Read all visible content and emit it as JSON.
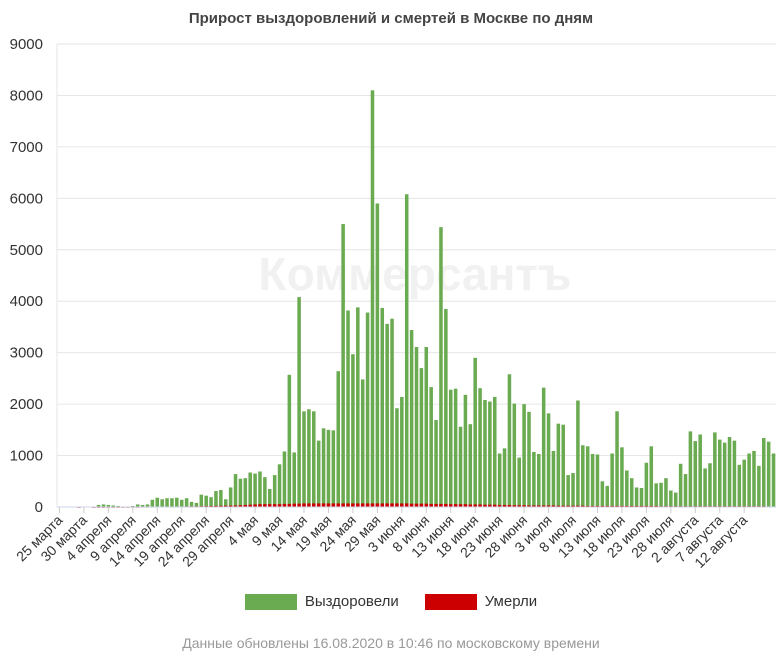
{
  "chart_data": {
    "type": "bar",
    "title": "Прирост выздоровлений и смертей в Москве по дням",
    "ylim": [
      0,
      9000
    ],
    "yticks": [
      0,
      1000,
      2000,
      3000,
      4000,
      5000,
      6000,
      7000,
      8000,
      9000
    ],
    "grid": true,
    "legend_position": "bottom",
    "watermark": "Коммерсантъ",
    "footer": "Данные обновлены 16.08.2020 в 10:46 по московскому времени",
    "x_tick_labels": [
      "25 марта",
      "30 марта",
      "4 апреля",
      "9 апреля",
      "14 апреля",
      "19 апреля",
      "24 апреля",
      "29 апреля",
      "4 мая",
      "9 мая",
      "14 мая",
      "19 мая",
      "24 мая",
      "29 мая",
      "3 июня",
      "8 июня",
      "13 июня",
      "18 июня",
      "23 июня",
      "28 июня",
      "3 июля",
      "8 июля",
      "13 июля",
      "18 июля",
      "23 июля",
      "28 июля",
      "2 августа",
      "7 августа",
      "12 августа"
    ],
    "x_tick_every": 5,
    "series": [
      {
        "name": "Выздоровели",
        "color": "#6aaa50",
        "values": [
          0,
          0,
          0,
          0,
          10,
          0,
          0,
          10,
          40,
          50,
          40,
          30,
          20,
          0,
          10,
          20,
          50,
          40,
          50,
          140,
          180,
          150,
          170,
          170,
          180,
          140,
          170,
          100,
          80,
          240,
          220,
          190,
          310,
          330,
          150,
          380,
          640,
          550,
          560,
          670,
          650,
          690,
          580,
          350,
          620,
          830,
          1080,
          2570,
          1060,
          4080,
          1860,
          1900,
          1860,
          1290,
          1530,
          1500,
          1490,
          2640,
          5500,
          3820,
          2970,
          3880,
          2480,
          3780,
          8100,
          5900,
          3870,
          3560,
          3660,
          1920,
          2140,
          6080,
          3440,
          3110,
          2700,
          3110,
          2330,
          1690,
          5440,
          3850,
          2280,
          2300,
          1560,
          2180,
          1610,
          2900,
          2310,
          2080,
          2050,
          2140,
          1040,
          1140,
          2580,
          2010,
          960,
          2000,
          1850,
          1070,
          1030,
          2320,
          1820,
          1090,
          1620,
          1600,
          620,
          660,
          2070,
          1200,
          1180,
          1030,
          1020,
          500,
          410,
          1040,
          1860,
          1160,
          710,
          560,
          380,
          370,
          860,
          1180,
          460,
          470,
          560,
          320,
          280,
          840,
          640,
          1470,
          1280,
          1410,
          750,
          850,
          1450,
          1310,
          1250,
          1360,
          1290,
          820,
          920,
          1040,
          1090,
          800,
          1340,
          1270,
          1040
        ]
      },
      {
        "name": "Умерли",
        "color": "#cc0000",
        "values": [
          0,
          0,
          0,
          0,
          1,
          0,
          0,
          1,
          1,
          1,
          1,
          2,
          2,
          2,
          2,
          3,
          3,
          4,
          4,
          5,
          6,
          7,
          8,
          9,
          10,
          10,
          12,
          13,
          14,
          16,
          18,
          20,
          22,
          24,
          26,
          28,
          30,
          35,
          40,
          45,
          50,
          55,
          55,
          55,
          55,
          55,
          60,
          60,
          65,
          65,
          70,
          70,
          70,
          70,
          70,
          70,
          70,
          70,
          70,
          70,
          70,
          70,
          70,
          70,
          70,
          70,
          70,
          70,
          70,
          70,
          70,
          70,
          65,
          65,
          65,
          65,
          60,
          60,
          60,
          60,
          55,
          55,
          55,
          55,
          50,
          50,
          50,
          45,
          45,
          45,
          40,
          40,
          40,
          35,
          35,
          35,
          30,
          30,
          30,
          30,
          30,
          30,
          25,
          25,
          25,
          25,
          25,
          25,
          20,
          20,
          20,
          20,
          20,
          20,
          20,
          20,
          20,
          20,
          20,
          20,
          20,
          20,
          20,
          15,
          15,
          15,
          15,
          15,
          15,
          15,
          15,
          15,
          15,
          15,
          15,
          15,
          15,
          15,
          15,
          15,
          15,
          15,
          15,
          15,
          15
        ]
      }
    ]
  }
}
